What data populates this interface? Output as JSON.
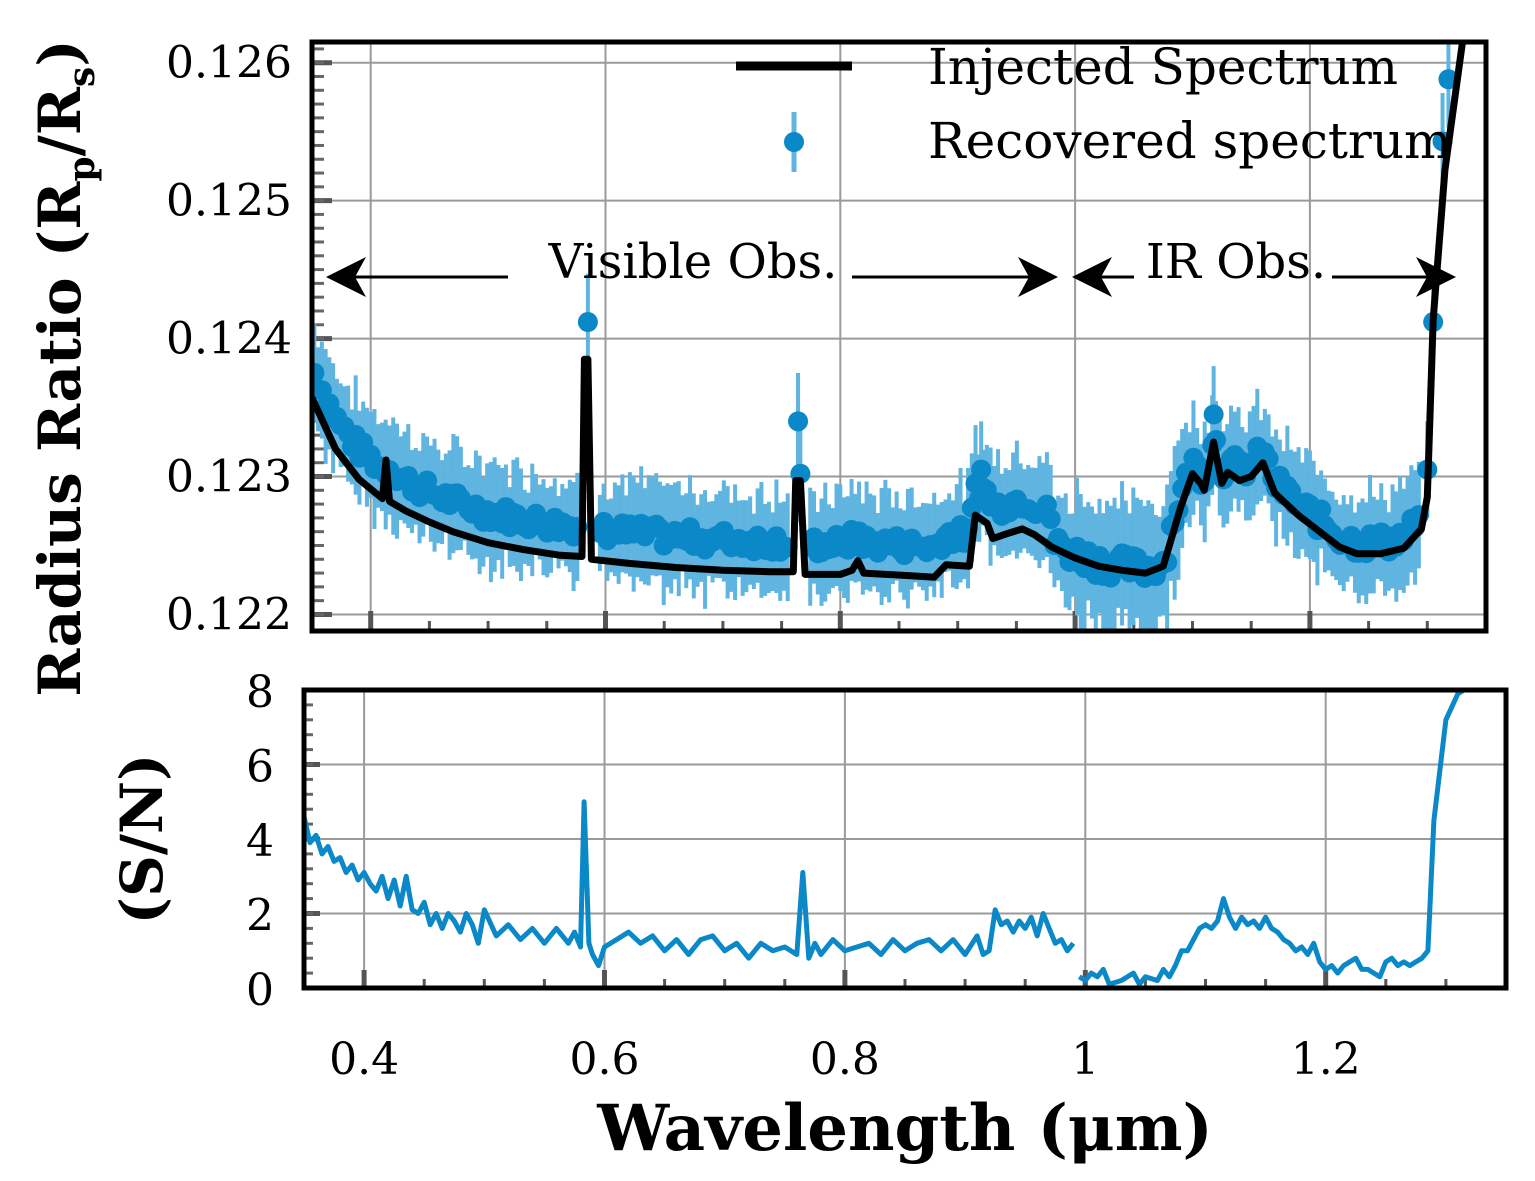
{
  "colors": {
    "recovered": "#0a88c8",
    "errorbar": "#5fb4e0",
    "injected": "#000000",
    "grid": "#9a9a9a"
  },
  "chart_data": [
    {
      "panel": "top",
      "type": "line+errorbar-scatter",
      "ylabel": "Radius Ratio (Rp/Rs)",
      "ylim": [
        0.12188,
        0.12615
      ],
      "xlim": [
        0.35,
        1.35
      ],
      "yticks": [
        "0.122",
        "0.123",
        "0.124",
        "0.125",
        "0.126"
      ],
      "ytick_values": [
        0.122,
        0.123,
        0.124,
        0.125,
        0.126
      ],
      "legend": {
        "location": "top-right",
        "entries": [
          "Injected Spectrum",
          "Recovered spectrum"
        ]
      },
      "annotations": [
        {
          "text": "Visible Obs.",
          "from": 0.35,
          "to": 0.975
        },
        {
          "text": "IR Obs.",
          "from": 0.985,
          "to": 1.34
        }
      ],
      "series": [
        {
          "name": "Injected Spectrum",
          "style": "line",
          "points": [
            [
              0.35,
              0.12357
            ],
            [
              0.37,
              0.1232
            ],
            [
              0.39,
              0.12298
            ],
            [
              0.41,
              0.12284
            ],
            [
              0.413,
              0.12312
            ],
            [
              0.416,
              0.12282
            ],
            [
              0.43,
              0.12275
            ],
            [
              0.45,
              0.12267
            ],
            [
              0.47,
              0.1226
            ],
            [
              0.5,
              0.12252
            ],
            [
              0.53,
              0.12247
            ],
            [
              0.56,
              0.12243
            ],
            [
              0.58,
              0.12242
            ],
            [
              0.582,
              0.12385
            ],
            [
              0.585,
              0.12385
            ],
            [
              0.588,
              0.1224
            ],
            [
              0.62,
              0.12237
            ],
            [
              0.66,
              0.12234
            ],
            [
              0.7,
              0.12232
            ],
            [
              0.74,
              0.12231
            ],
            [
              0.76,
              0.12231
            ],
            [
              0.762,
              0.12297
            ],
            [
              0.766,
              0.12297
            ],
            [
              0.77,
              0.12229
            ],
            [
              0.8,
              0.12229
            ],
            [
              0.81,
              0.12232
            ],
            [
              0.815,
              0.12239
            ],
            [
              0.82,
              0.1223
            ],
            [
              0.86,
              0.12228
            ],
            [
              0.88,
              0.12227
            ],
            [
              0.89,
              0.12236
            ],
            [
              0.91,
              0.12235
            ],
            [
              0.915,
              0.12272
            ],
            [
              0.925,
              0.12266
            ],
            [
              0.93,
              0.12255
            ],
            [
              0.94,
              0.12258
            ],
            [
              0.955,
              0.12262
            ],
            [
              0.965,
              0.12258
            ],
            [
              0.98,
              0.12249
            ],
            [
              1.0,
              0.12241
            ],
            [
              1.02,
              0.12235
            ],
            [
              1.04,
              0.12232
            ],
            [
              1.06,
              0.1223
            ],
            [
              1.075,
              0.12235
            ],
            [
              1.09,
              0.12278
            ],
            [
              1.1,
              0.12302
            ],
            [
              1.107,
              0.12295
            ],
            [
              1.11,
              0.1229
            ],
            [
              1.118,
              0.12325
            ],
            [
              1.125,
              0.12295
            ],
            [
              1.13,
              0.12303
            ],
            [
              1.14,
              0.12297
            ],
            [
              1.15,
              0.123
            ],
            [
              1.16,
              0.1231
            ],
            [
              1.17,
              0.12288
            ],
            [
              1.19,
              0.12272
            ],
            [
              1.21,
              0.12259
            ],
            [
              1.225,
              0.12249
            ],
            [
              1.24,
              0.12244
            ],
            [
              1.26,
              0.12244
            ],
            [
              1.28,
              0.12248
            ],
            [
              1.295,
              0.12262
            ],
            [
              1.3,
              0.12285
            ],
            [
              1.305,
              0.12414
            ],
            [
              1.315,
              0.12522
            ],
            [
              1.33,
              0.12615
            ]
          ]
        },
        {
          "name": "Recovered spectrum",
          "style": "points-with-errorbars",
          "highlighted_points": [
            [
              0.585,
              0.12412
            ],
            [
              0.764,
              0.1234
            ],
            [
              0.766,
              0.12302
            ],
            [
              0.92,
              0.12305
            ],
            [
              1.118,
              0.12345
            ],
            [
              1.305,
              0.12412
            ],
            [
              1.313,
              0.12543
            ],
            [
              1.318,
              0.12588
            ],
            [
              1.3,
              0.12305
            ]
          ],
          "typical_error": 0.00035
        }
      ]
    },
    {
      "panel": "bottom",
      "type": "line",
      "ylabel": "(S/N)",
      "xlabel": "Wavelength (μm)",
      "xlim": [
        0.35,
        1.35
      ],
      "ylim": [
        0,
        8
      ],
      "xticks": [
        "0.4",
        "0.6",
        "0.8",
        "1",
        "1.2"
      ],
      "xtick_values": [
        0.4,
        0.6,
        0.8,
        1.0,
        1.2
      ],
      "yticks": [
        "0",
        "2",
        "4",
        "6",
        "8"
      ],
      "ytick_values": [
        0,
        2,
        4,
        6,
        8
      ],
      "series": [
        {
          "name": "S/N",
          "segments": [
            [
              [
                0.35,
                4.6
              ],
              [
                0.355,
                3.9
              ],
              [
                0.36,
                4.1
              ],
              [
                0.365,
                3.6
              ],
              [
                0.37,
                3.8
              ],
              [
                0.375,
                3.4
              ],
              [
                0.38,
                3.5
              ],
              [
                0.385,
                3.1
              ],
              [
                0.39,
                3.3
              ],
              [
                0.395,
                2.9
              ],
              [
                0.4,
                3.1
              ],
              [
                0.405,
                2.8
              ],
              [
                0.41,
                2.6
              ],
              [
                0.415,
                3.0
              ],
              [
                0.42,
                2.4
              ],
              [
                0.425,
                2.9
              ],
              [
                0.43,
                2.2
              ],
              [
                0.435,
                3.0
              ],
              [
                0.44,
                2.1
              ],
              [
                0.445,
                2.0
              ],
              [
                0.45,
                2.3
              ],
              [
                0.455,
                1.7
              ],
              [
                0.46,
                2.0
              ],
              [
                0.465,
                1.6
              ],
              [
                0.47,
                2.0
              ],
              [
                0.475,
                1.8
              ],
              [
                0.48,
                1.5
              ],
              [
                0.485,
                2.0
              ],
              [
                0.49,
                1.7
              ],
              [
                0.495,
                1.2
              ],
              [
                0.5,
                2.1
              ],
              [
                0.51,
                1.4
              ],
              [
                0.52,
                1.7
              ],
              [
                0.53,
                1.3
              ],
              [
                0.54,
                1.6
              ],
              [
                0.55,
                1.2
              ],
              [
                0.56,
                1.6
              ],
              [
                0.57,
                1.2
              ],
              [
                0.575,
                1.5
              ],
              [
                0.58,
                1.1
              ],
              [
                0.583,
                5.0
              ],
              [
                0.587,
                1.2
              ],
              [
                0.59,
                0.9
              ],
              [
                0.595,
                0.6
              ],
              [
                0.6,
                1.1
              ],
              [
                0.61,
                1.3
              ],
              [
                0.62,
                1.5
              ],
              [
                0.63,
                1.2
              ],
              [
                0.64,
                1.4
              ],
              [
                0.65,
                1.0
              ],
              [
                0.66,
                1.3
              ],
              [
                0.67,
                0.9
              ],
              [
                0.68,
                1.3
              ],
              [
                0.69,
                1.4
              ],
              [
                0.7,
                1.0
              ],
              [
                0.71,
                1.2
              ],
              [
                0.72,
                0.8
              ],
              [
                0.73,
                1.2
              ],
              [
                0.74,
                1.0
              ],
              [
                0.75,
                1.1
              ],
              [
                0.76,
                0.9
              ],
              [
                0.765,
                3.1
              ],
              [
                0.77,
                0.8
              ],
              [
                0.775,
                1.2
              ],
              [
                0.78,
                0.9
              ],
              [
                0.79,
                1.3
              ],
              [
                0.8,
                1.0
              ],
              [
                0.81,
                1.1
              ],
              [
                0.82,
                1.2
              ],
              [
                0.83,
                0.9
              ],
              [
                0.84,
                1.3
              ],
              [
                0.85,
                1.0
              ],
              [
                0.86,
                1.2
              ],
              [
                0.87,
                1.3
              ],
              [
                0.88,
                1.0
              ],
              [
                0.89,
                1.3
              ],
              [
                0.9,
                0.9
              ],
              [
                0.91,
                1.4
              ],
              [
                0.915,
                0.9
              ],
              [
                0.92,
                1.0
              ],
              [
                0.925,
                2.1
              ],
              [
                0.93,
                1.7
              ],
              [
                0.935,
                1.8
              ],
              [
                0.94,
                1.5
              ],
              [
                0.945,
                1.8
              ],
              [
                0.95,
                1.6
              ],
              [
                0.955,
                1.9
              ],
              [
                0.96,
                1.4
              ],
              [
                0.965,
                2.0
              ],
              [
                0.97,
                1.6
              ],
              [
                0.975,
                1.2
              ],
              [
                0.98,
                1.3
              ],
              [
                0.985,
                1.0
              ],
              [
                0.99,
                1.2
              ]
            ],
            [
              [
                0.995,
                0.3
              ],
              [
                1.0,
                0.2
              ],
              [
                1.005,
                0.4
              ],
              [
                1.01,
                0.3
              ],
              [
                1.015,
                0.5
              ],
              [
                1.02,
                0.1
              ],
              [
                1.03,
                0.2
              ],
              [
                1.04,
                0.4
              ],
              [
                1.045,
                0.1
              ],
              [
                1.05,
                0.3
              ],
              [
                1.06,
                0.2
              ],
              [
                1.065,
                0.5
              ],
              [
                1.07,
                0.3
              ],
              [
                1.075,
                0.6
              ],
              [
                1.08,
                1.0
              ],
              [
                1.085,
                1.0
              ],
              [
                1.09,
                1.3
              ],
              [
                1.095,
                1.6
              ],
              [
                1.1,
                1.7
              ],
              [
                1.105,
                1.6
              ],
              [
                1.11,
                1.8
              ],
              [
                1.115,
                2.4
              ],
              [
                1.12,
                1.9
              ],
              [
                1.125,
                1.6
              ],
              [
                1.13,
                1.9
              ],
              [
                1.135,
                1.7
              ],
              [
                1.14,
                1.8
              ],
              [
                1.145,
                1.6
              ],
              [
                1.15,
                1.9
              ],
              [
                1.155,
                1.6
              ],
              [
                1.16,
                1.5
              ],
              [
                1.165,
                1.3
              ],
              [
                1.17,
                1.2
              ],
              [
                1.175,
                1.0
              ],
              [
                1.18,
                1.1
              ],
              [
                1.185,
                0.9
              ],
              [
                1.19,
                1.2
              ],
              [
                1.195,
                0.7
              ],
              [
                1.2,
                0.5
              ],
              [
                1.205,
                0.6
              ],
              [
                1.21,
                0.4
              ],
              [
                1.215,
                0.6
              ],
              [
                1.22,
                0.7
              ],
              [
                1.225,
                0.8
              ],
              [
                1.23,
                0.5
              ],
              [
                1.235,
                0.5
              ],
              [
                1.24,
                0.4
              ],
              [
                1.245,
                0.3
              ],
              [
                1.25,
                0.7
              ],
              [
                1.255,
                0.8
              ],
              [
                1.26,
                0.6
              ],
              [
                1.265,
                0.7
              ],
              [
                1.27,
                0.6
              ],
              [
                1.275,
                0.7
              ],
              [
                1.28,
                0.8
              ],
              [
                1.285,
                1.0
              ],
              [
                1.29,
                4.5
              ],
              [
                1.3,
                7.2
              ],
              [
                1.31,
                7.9
              ],
              [
                1.32,
                8.1
              ]
            ]
          ]
        }
      ]
    }
  ]
}
